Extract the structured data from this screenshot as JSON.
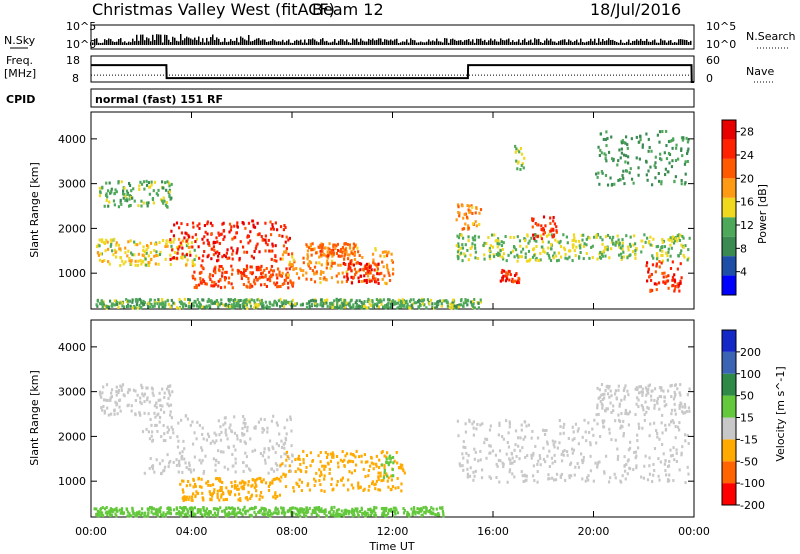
{
  "header": {
    "station": "Christmas Valley West (fitACF)",
    "beam": "Beam 12",
    "date": "18/Jul/2016"
  },
  "left_labels": {
    "nsky": "N.Sky",
    "freq_line1": "Freq.",
    "freq_line2": "[MHz]",
    "cpid": "CPID"
  },
  "right_labels": {
    "nsearch": "N.Search",
    "nave": "Nave"
  },
  "cpid_text": "normal (fast) 151 RF",
  "colors": {
    "power": [
      "#0000ff",
      "#1e4fa8",
      "#3a8a52",
      "#4ea85a",
      "#f0d81e",
      "#ff9a14",
      "#ff5a00",
      "#ff2200",
      "#e80000"
    ],
    "velocity": [
      "#ff0000",
      "#ff6400",
      "#ffaa00",
      "#c8c8c8",
      "#63c83c",
      "#2e8a46",
      "#3c64b4",
      "#1428c8"
    ]
  },
  "chart_data": [
    {
      "type": "line",
      "name": "noise-panel",
      "left_axis": {
        "label": "N.Sky",
        "ticks": [
          "10^5",
          "10^0"
        ]
      },
      "right_axis": {
        "label": "N.Search",
        "ticks": [
          "10^5",
          "10^0"
        ]
      }
    },
    {
      "type": "line",
      "name": "freq-nave-panel",
      "left_axis": {
        "label_lines": [
          "Freq.",
          "[MHz]"
        ],
        "ticks": [
          18,
          8
        ],
        "ylim": [
          8,
          18
        ]
      },
      "right_axis": {
        "label": "Nave",
        "ticks": [
          60,
          0
        ],
        "ylim": [
          0,
          60
        ]
      },
      "x": [
        0,
        3,
        3.01,
        15,
        15.01,
        23.9,
        23.91,
        24
      ],
      "freq": [
        14.5,
        14.5,
        9.5,
        9.5,
        14.5,
        14.5,
        8,
        8
      ],
      "nave": [
        16,
        16,
        16,
        16,
        16,
        16,
        16,
        16
      ]
    },
    {
      "type": "heatmap",
      "name": "power",
      "ylabel": "Slant Range [km]",
      "ylim": [
        200,
        4600
      ],
      "yticks": [
        1000,
        2000,
        3000,
        4000
      ],
      "xlim": [
        0,
        24
      ],
      "xticks": [
        "00:00",
        "04:00",
        "08:00",
        "12:00",
        "16:00",
        "20:00",
        "00:00"
      ],
      "colorbar": {
        "label": "Power [dB]",
        "ticks": [
          4,
          8,
          12,
          16,
          20,
          24,
          28
        ],
        "range": [
          0,
          30
        ]
      },
      "regions": [
        {
          "t0": 0.3,
          "t1": 3.2,
          "r0": 2500,
          "r1": 3100,
          "value": 12
        },
        {
          "t0": 0.2,
          "t1": 4.2,
          "r0": 1200,
          "r1": 1800,
          "value": 16
        },
        {
          "t0": 3.1,
          "t1": 7.9,
          "r0": 1300,
          "r1": 2200,
          "value": 27
        },
        {
          "t0": 4.0,
          "t1": 8.0,
          "r0": 700,
          "r1": 1200,
          "value": 24
        },
        {
          "t0": 7.5,
          "t1": 12.0,
          "r0": 800,
          "r1": 1600,
          "value": 20
        },
        {
          "t0": 10.0,
          "t1": 11.5,
          "r0": 800,
          "r1": 1300,
          "value": 27
        },
        {
          "t0": 8.5,
          "t1": 10.5,
          "r0": 1400,
          "r1": 1700,
          "value": 22
        },
        {
          "t0": 0.1,
          "t1": 15.5,
          "r0": 250,
          "r1": 450,
          "value": 12
        },
        {
          "t0": 14.5,
          "t1": 23.8,
          "r0": 1300,
          "r1": 1900,
          "value": 14
        },
        {
          "t0": 17.5,
          "t1": 18.5,
          "r0": 1800,
          "r1": 2300,
          "value": 26
        },
        {
          "t0": 16.2,
          "t1": 17.0,
          "r0": 800,
          "r1": 1100,
          "value": 26
        },
        {
          "t0": 22.0,
          "t1": 23.5,
          "r0": 600,
          "r1": 1300,
          "value": 26
        },
        {
          "t0": 14.5,
          "t1": 15.5,
          "r0": 2000,
          "r1": 2600,
          "value": 20
        },
        {
          "t0": 16.8,
          "t1": 17.2,
          "r0": 3300,
          "r1": 3900,
          "value": 14
        },
        {
          "t0": 20.0,
          "t1": 23.8,
          "r0": 3000,
          "r1": 4200,
          "value": 10
        }
      ]
    },
    {
      "type": "heatmap",
      "name": "velocity",
      "ylabel": "Slant Range [km]",
      "ylim": [
        200,
        4600
      ],
      "yticks": [
        1000,
        2000,
        3000,
        4000
      ],
      "xlim": [
        0,
        24
      ],
      "xticks": [
        "00:00",
        "04:00",
        "08:00",
        "12:00",
        "16:00",
        "20:00",
        "00:00"
      ],
      "xlabel": "Time UT",
      "colorbar": {
        "label": "Velocity [m s^-1]",
        "ticks": [
          200,
          100,
          50,
          15,
          -15,
          -50,
          -100,
          -200
        ]
      },
      "regions": [
        {
          "t0": 0.3,
          "t1": 3.2,
          "r0": 2500,
          "r1": 3200,
          "value": 0
        },
        {
          "t0": 2.0,
          "t1": 8.0,
          "r0": 1200,
          "r1": 2500,
          "value": 0
        },
        {
          "t0": 3.5,
          "t1": 7.5,
          "r0": 600,
          "r1": 1100,
          "value": -60
        },
        {
          "t0": 7.5,
          "t1": 12.5,
          "r0": 800,
          "r1": 1700,
          "value": -40
        },
        {
          "t0": 11.5,
          "t1": 12.0,
          "r0": 1100,
          "r1": 1600,
          "value": 40
        },
        {
          "t0": 0.1,
          "t1": 14.0,
          "r0": 250,
          "r1": 450,
          "value": 30
        },
        {
          "t0": 14.5,
          "t1": 23.8,
          "r0": 1000,
          "r1": 2400,
          "value": 0
        },
        {
          "t0": 20.0,
          "t1": 23.8,
          "r0": 2500,
          "r1": 3200,
          "value": 0
        }
      ]
    }
  ]
}
